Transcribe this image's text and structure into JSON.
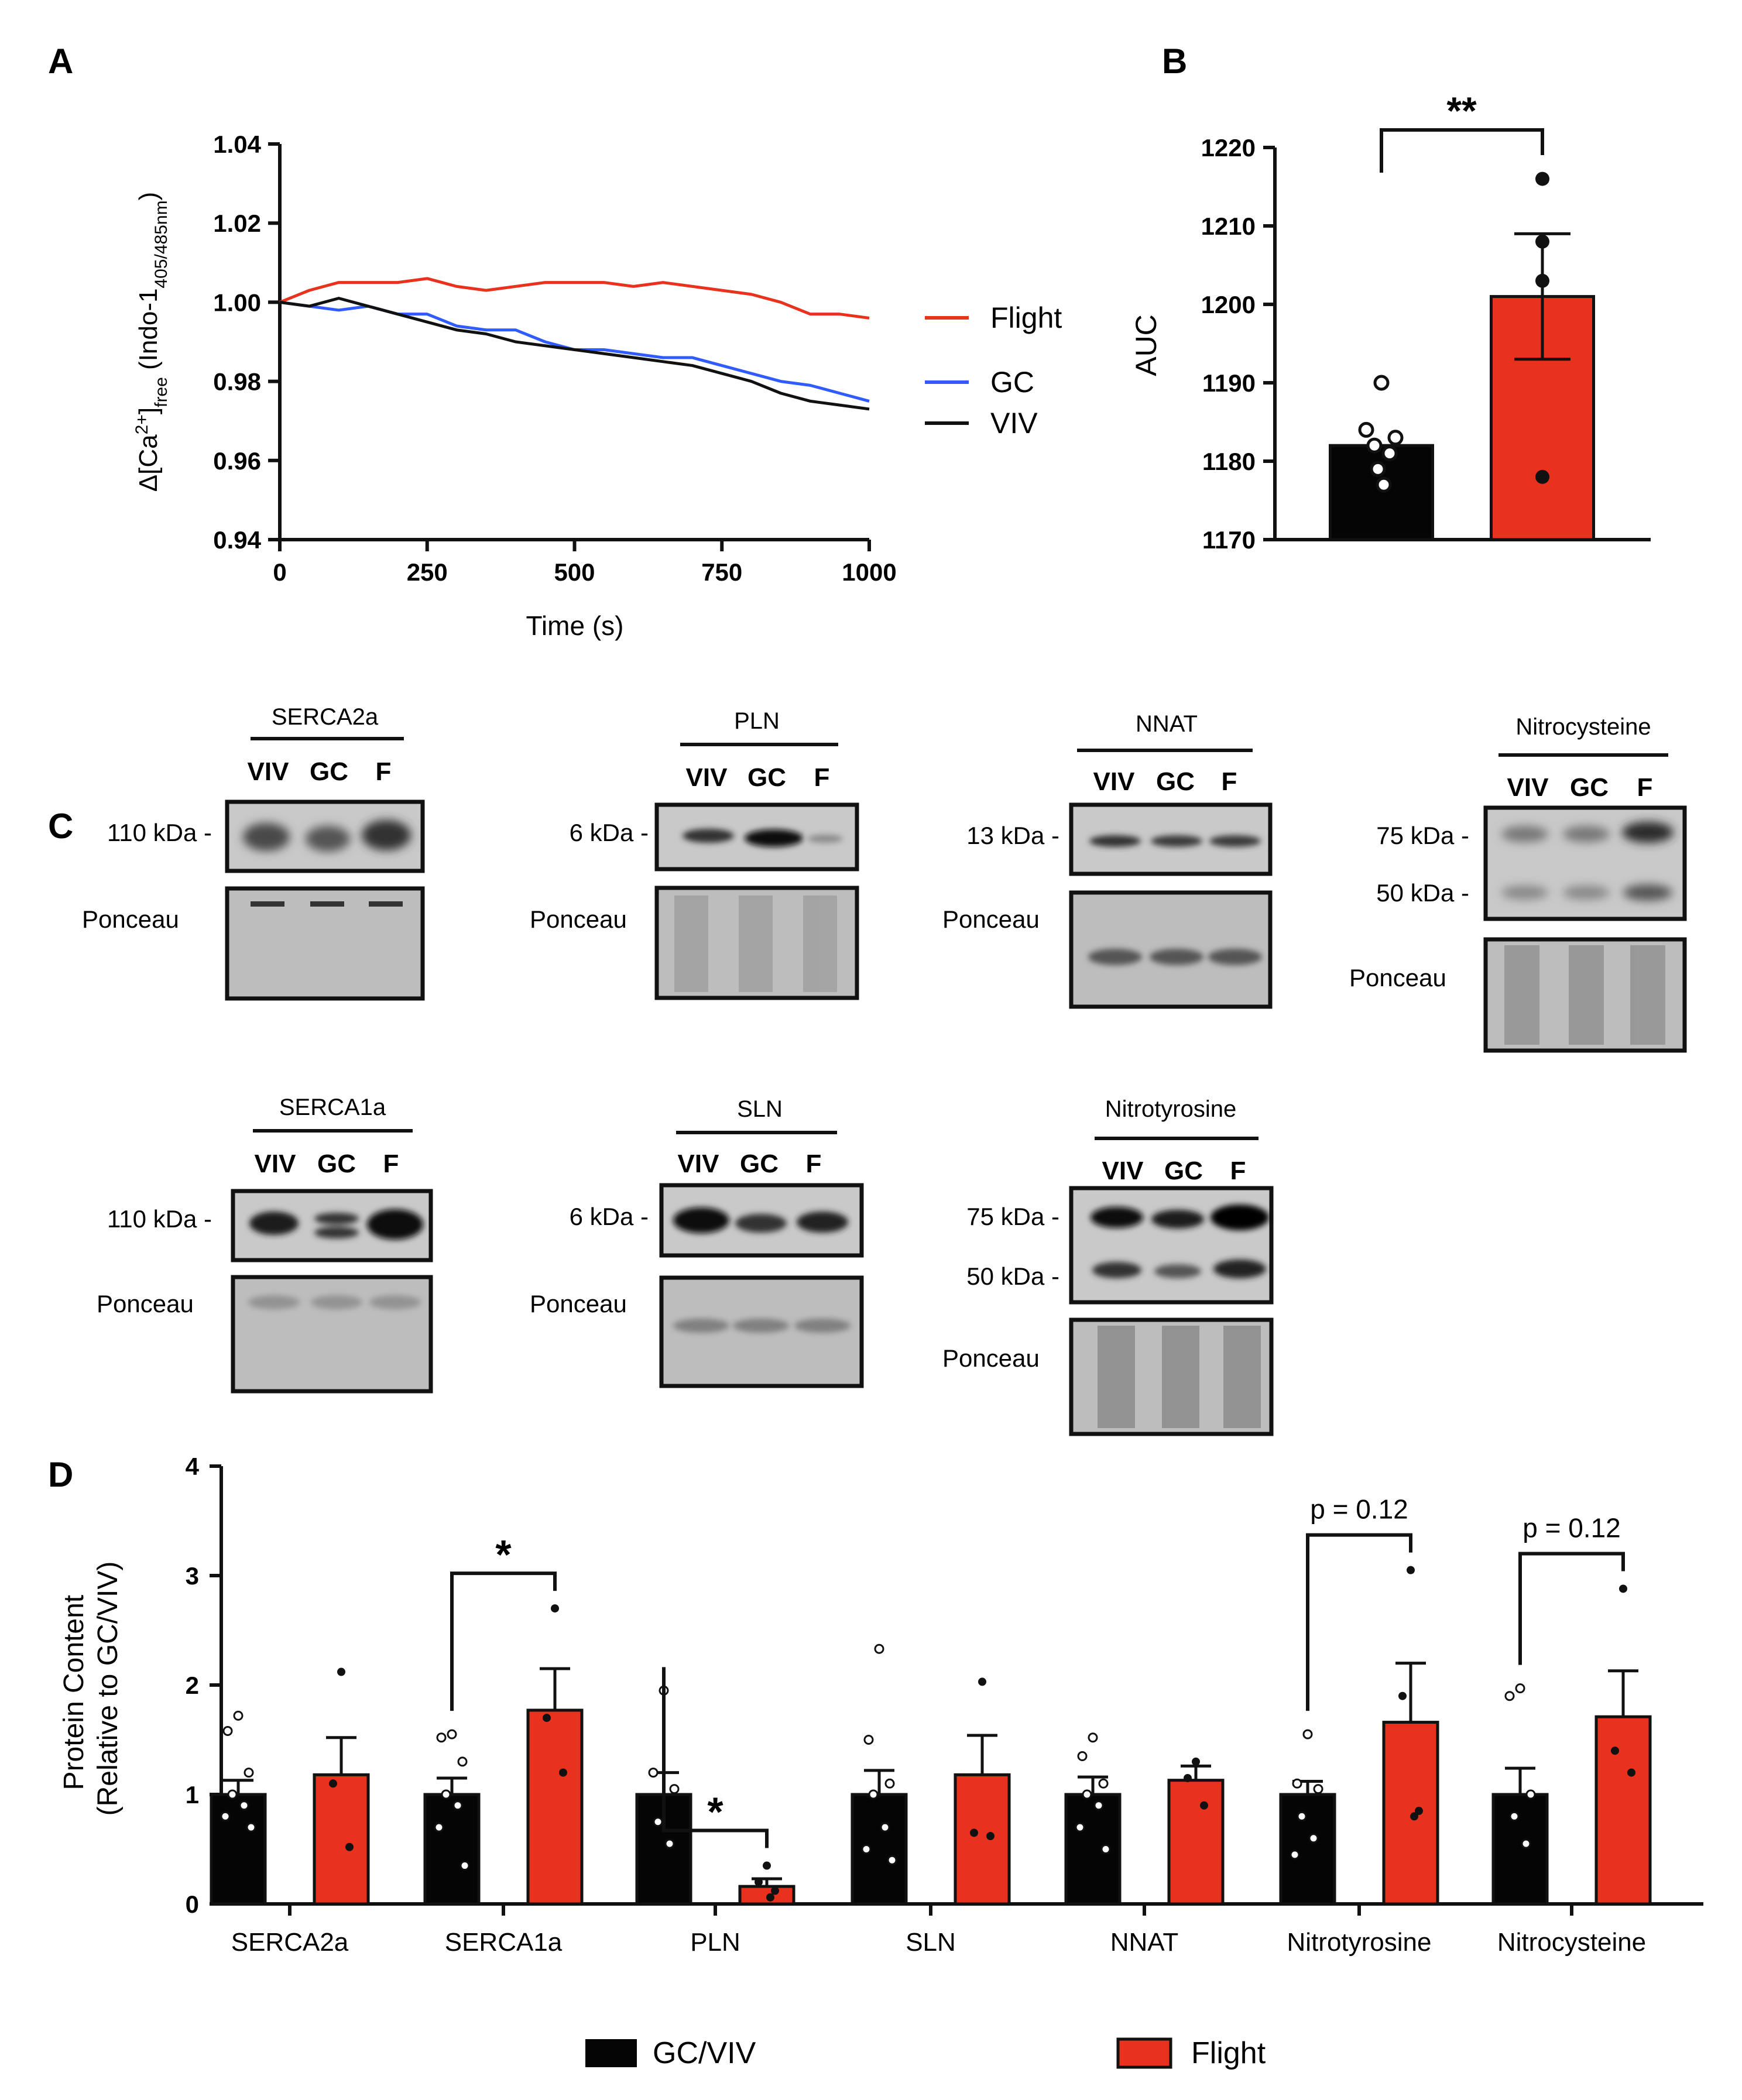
{
  "colors": {
    "flight": "#e8321e",
    "gc": "#2f5bff",
    "viv": "#111111",
    "bar_gcviv": "#050505"
  },
  "chart_data": [
    {
      "panel": "A",
      "type": "line",
      "xlabel": "Time (s)",
      "ylabel_main": "Δ[Ca",
      "ylabel_sup": "2+",
      "ylabel_mid": "]",
      "ylabel_sub": "free",
      "ylabel_rest": " (Indo-1",
      "ylabel_sub2": "405/485nm",
      "ylabel_close": ")",
      "xlim": [
        0,
        1000
      ],
      "ylim": [
        0.94,
        1.04
      ],
      "xticks": [
        "0",
        "250",
        "500",
        "750",
        "1000"
      ],
      "yticks": [
        "0.94",
        "0.96",
        "0.98",
        "1.00",
        "1.02",
        "1.04"
      ],
      "x": [
        0,
        50,
        100,
        150,
        200,
        250,
        300,
        350,
        400,
        450,
        500,
        550,
        600,
        650,
        700,
        750,
        800,
        850,
        900,
        950,
        1000
      ],
      "series": [
        {
          "name": "Flight",
          "values": [
            1.0,
            1.003,
            1.005,
            1.005,
            1.005,
            1.006,
            1.004,
            1.003,
            1.004,
            1.005,
            1.005,
            1.005,
            1.004,
            1.005,
            1.004,
            1.003,
            1.002,
            1.0,
            0.997,
            0.997,
            0.996
          ]
        },
        {
          "name": "GC",
          "values": [
            1.0,
            0.999,
            0.998,
            0.999,
            0.997,
            0.997,
            0.994,
            0.993,
            0.993,
            0.99,
            0.988,
            0.988,
            0.987,
            0.986,
            0.986,
            0.984,
            0.982,
            0.98,
            0.979,
            0.977,
            0.975
          ]
        },
        {
          "name": "VIV",
          "values": [
            1.0,
            0.999,
            1.001,
            0.999,
            0.997,
            0.995,
            0.993,
            0.992,
            0.99,
            0.989,
            0.988,
            0.987,
            0.986,
            0.985,
            0.984,
            0.982,
            0.98,
            0.977,
            0.975,
            0.974,
            0.973
          ]
        }
      ]
    },
    {
      "panel": "B",
      "type": "bar",
      "ylabel": "AUC",
      "ylim": [
        1170,
        1220
      ],
      "yticks": [
        "1170",
        "1180",
        "1190",
        "1200",
        "1210",
        "1220"
      ],
      "categories": [
        "GC/VIV",
        "Flight"
      ],
      "values": [
        1182,
        1201
      ],
      "sem": [
        0,
        8
      ],
      "points": [
        [
          1190,
          1184,
          1183,
          1182,
          1181,
          1179,
          1177
        ],
        [
          1216,
          1208,
          1203,
          1178
        ]
      ],
      "significance": "**"
    },
    {
      "panel": "D",
      "type": "bar",
      "ylabel_line1": "Protein Content",
      "ylabel_line2": "(Relative to GC/VIV)",
      "ylim": [
        0,
        4
      ],
      "yticks": [
        "0",
        "1",
        "2",
        "3",
        "4"
      ],
      "categories": [
        "SERCA2a",
        "SERCA1a",
        "PLN",
        "SLN",
        "NNAT",
        "Nitrotyrosine",
        "Nitrocysteine"
      ],
      "series": [
        {
          "name": "GC/VIV",
          "values": [
            1.0,
            1.0,
            1.0,
            1.0,
            1.0,
            1.0,
            1.0
          ],
          "sem": [
            0.13,
            0.15,
            0.2,
            0.22,
            0.16,
            0.12,
            0.24
          ]
        },
        {
          "name": "Flight",
          "values": [
            1.18,
            1.77,
            0.16,
            1.18,
            1.13,
            1.66,
            1.71
          ],
          "sem": [
            0.34,
            0.38,
            0.07,
            0.36,
            0.13,
            0.54,
            0.42
          ]
        }
      ],
      "points_gcviv": [
        [
          1.72,
          1.58,
          1.2,
          1.0,
          0.9,
          0.8,
          0.7
        ],
        [
          1.55,
          1.52,
          1.3,
          1.0,
          0.9,
          0.7,
          0.35
        ],
        [
          1.95,
          1.2,
          1.05,
          0.75,
          0.55
        ],
        [
          2.33,
          1.5,
          1.1,
          1.0,
          0.7,
          0.5,
          0.4
        ],
        [
          1.52,
          1.35,
          1.1,
          1.0,
          0.9,
          0.7,
          0.5
        ],
        [
          1.55,
          1.1,
          1.05,
          0.8,
          0.6,
          0.45
        ],
        [
          1.97,
          1.9,
          1.0,
          0.8,
          0.55
        ]
      ],
      "points_flight": [
        [
          2.12,
          1.1,
          0.52
        ],
        [
          2.7,
          1.7,
          1.2
        ],
        [
          0.35,
          0.2,
          0.12,
          0.06
        ],
        [
          2.03,
          0.65,
          0.62
        ],
        [
          1.3,
          1.15,
          0.9
        ],
        [
          3.05,
          1.9,
          0.85,
          0.8
        ],
        [
          2.88,
          1.4,
          1.2
        ]
      ],
      "significance": [
        {
          "left": 1,
          "label": "*"
        },
        {
          "left": 2,
          "label": "*"
        },
        {
          "left": 5,
          "label": "p = 0.12"
        },
        {
          "left": 6,
          "label": "p = 0.12"
        }
      ]
    }
  ],
  "panel_labels": {
    "a": "A",
    "b": "B",
    "c": "C",
    "d": "D"
  },
  "legend_a": [
    "Flight",
    "GC",
    "VIV"
  ],
  "legend_d": [
    "GC/VIV",
    "Flight"
  ],
  "lanes": {
    "viv": "VIV",
    "gc": "GC",
    "f": "F"
  },
  "ponceau": "Ponceau",
  "blots": {
    "serca2a": {
      "title": "SERCA2a",
      "kda": "110 kDa -"
    },
    "pln": {
      "title": "PLN",
      "kda": "6 kDa -"
    },
    "nnat": {
      "title": "NNAT",
      "kda": "13 kDa -"
    },
    "nitrocysteine": {
      "title": "Nitrocysteine",
      "kda1": "75 kDa -",
      "kda2": "50 kDa -"
    },
    "serca1a": {
      "title": "SERCA1a",
      "kda": "110 kDa -"
    },
    "sln": {
      "title": "SLN",
      "kda": "6 kDa -"
    },
    "nitrotyrosine": {
      "title": "Nitrotyrosine",
      "kda1": "75 kDa -",
      "kda2": "50 kDa -"
    }
  }
}
